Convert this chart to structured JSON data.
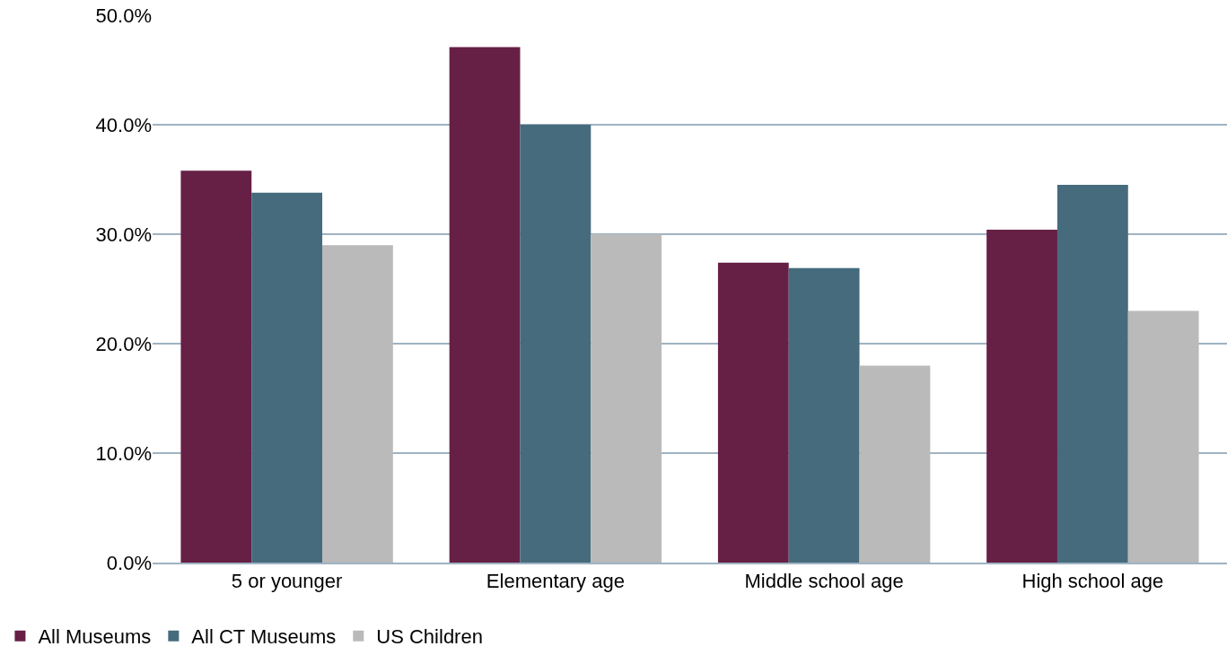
{
  "chart_data": {
    "type": "bar",
    "categories": [
      "5 or younger",
      "Elementary age",
      "Middle school age",
      "High school age"
    ],
    "series": [
      {
        "name": "All Museums",
        "color": "#661f45",
        "values": [
          35.8,
          47.1,
          27.4,
          30.4
        ]
      },
      {
        "name": "All CT Museums",
        "color": "#466b7d",
        "values": [
          33.8,
          40.0,
          26.9,
          34.5
        ]
      },
      {
        "name": "US Children",
        "color": "#bababa",
        "values": [
          29.0,
          30.0,
          18.0,
          23.0
        ]
      }
    ],
    "ylim": [
      0,
      50
    ],
    "yticks": [
      {
        "value": 0,
        "label": "0.0%"
      },
      {
        "value": 10,
        "label": "10.0%"
      },
      {
        "value": 20,
        "label": "20.0%"
      },
      {
        "value": 30,
        "label": "30.0%"
      },
      {
        "value": 40,
        "label": "40.0%"
      },
      {
        "value": 50,
        "label": "50.0%"
      }
    ],
    "grid": "y",
    "legend": "bottom left"
  }
}
